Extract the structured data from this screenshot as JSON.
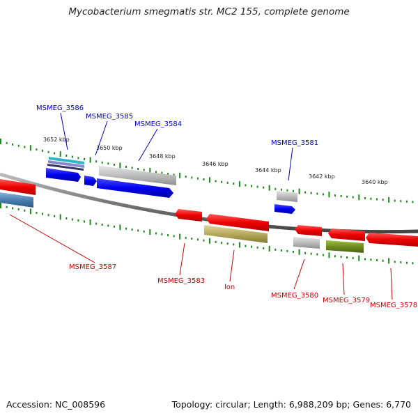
{
  "title": "Mycobacterium smegmatis str. MC2 155, complete genome",
  "footer": {
    "accession": "Accession: NC_008596",
    "summary": "Topology: circular; Length: 6,988,209 bp; Genes: 6,770"
  },
  "colors": {
    "forward": "#0000cc",
    "reverse": "#cc0000",
    "backbone": "#7a7a7a",
    "ticks": "#1a8a1a",
    "gray_feature": "#b8b8b8",
    "tan_feature": "#b5a85a",
    "olive_feature": "#6f8f1f",
    "steel_feature": "#4a7fb0",
    "cyan_feature": "#2ab7c8"
  },
  "position_labels": [
    "3652 kbp",
    "3650 kbp",
    "3648 kbp",
    "3646 kbp",
    "3644 kbp",
    "3642 kbp",
    "3640 kbp"
  ],
  "forward_genes": [
    "MSMEG_3586",
    "MSMEG_3585",
    "MSMEG_3584",
    "MSMEG_3581"
  ],
  "reverse_genes": [
    "MSMEG_3587",
    "MSMEG_3583",
    "lon",
    "MSMEG_3580",
    "MSMEG_3579",
    "MSMEG_3578"
  ]
}
